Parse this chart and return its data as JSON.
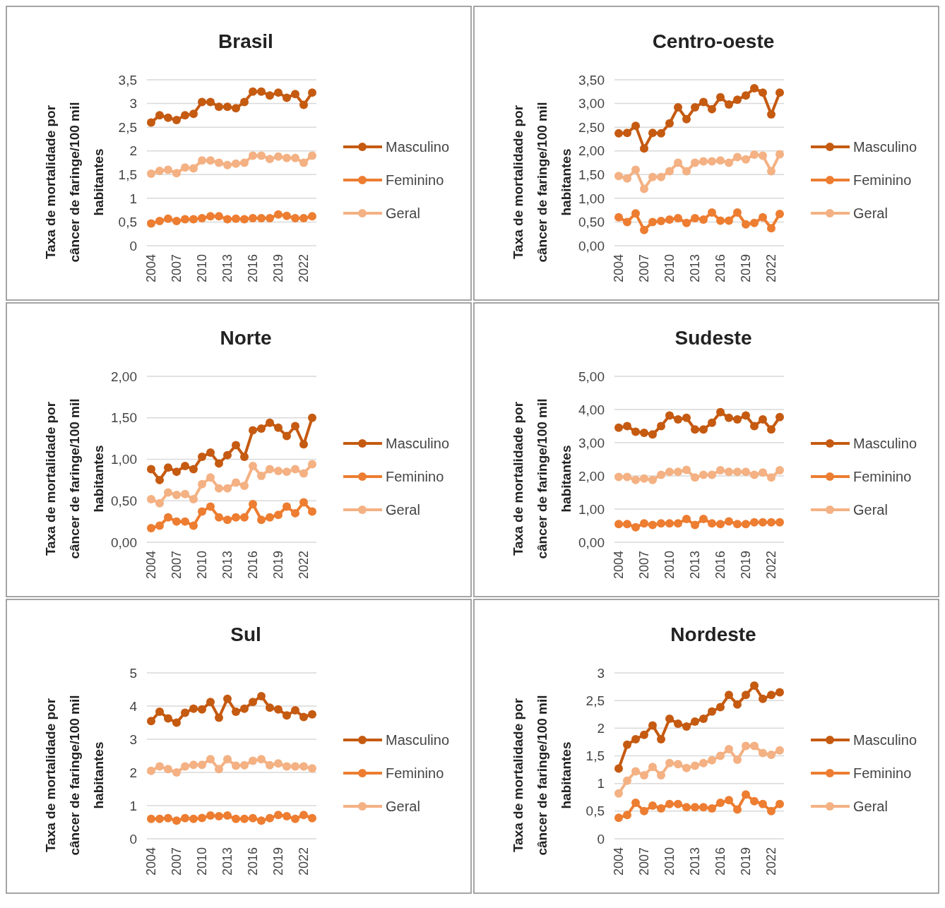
{
  "chart_data": [
    {
      "type": "line",
      "title": "Brasil",
      "ylabel": "Taxa de mortalidade por câncer de faringe/100 mil habitantes",
      "categories": [
        "2004",
        null,
        null,
        "2007",
        null,
        null,
        "2010",
        null,
        null,
        "2013",
        null,
        null,
        "2016",
        null,
        null,
        "2019",
        null,
        null,
        "2022",
        null
      ],
      "ylim": [
        0,
        3.5
      ],
      "yticks": [
        0,
        {
          "value": 0.5,
          "label": "0,5"
        },
        1,
        {
          "value": 1.5,
          "label": "1,5"
        },
        2,
        {
          "value": 2.5,
          "label": "2,5"
        },
        3,
        {
          "value": 3.5,
          "label": "3,5"
        }
      ],
      "grid": "y",
      "legend": "right",
      "marker": "circle",
      "series": [
        {
          "name": "Masculino",
          "color": "#c55a11",
          "values": [
            2.6,
            2.75,
            2.7,
            2.65,
            2.75,
            2.78,
            3.03,
            3.03,
            2.93,
            2.93,
            2.9,
            3.03,
            3.25,
            3.25,
            3.17,
            3.23,
            3.12,
            3.2,
            2.97,
            3.23
          ]
        },
        {
          "name": "Feminino",
          "color": "#ed7d31",
          "values": [
            0.47,
            0.52,
            0.57,
            0.52,
            0.56,
            0.56,
            0.58,
            0.62,
            0.62,
            0.56,
            0.57,
            0.56,
            0.58,
            0.58,
            0.58,
            0.66,
            0.63,
            0.58,
            0.58,
            0.62
          ]
        },
        {
          "name": "Geral",
          "color": "#f4b183",
          "values": [
            1.52,
            1.58,
            1.6,
            1.53,
            1.65,
            1.63,
            1.8,
            1.8,
            1.75,
            1.7,
            1.73,
            1.75,
            1.9,
            1.9,
            1.83,
            1.88,
            1.85,
            1.85,
            1.75,
            1.9
          ]
        }
      ]
    },
    {
      "type": "line",
      "title": "Centro-oeste",
      "ylabel": "Taxa de mortalidade por câncer de faringe/100 mil habitantes",
      "categories": [
        "2004",
        null,
        null,
        "2007",
        null,
        null,
        "2010",
        null,
        null,
        "2013",
        null,
        null,
        "2016",
        null,
        null,
        "2019",
        null,
        null,
        "2022",
        null
      ],
      "ylim": [
        0,
        3.5
      ],
      "yticks": [
        {
          "value": 0,
          "label": "0,00"
        },
        {
          "value": 0.5,
          "label": "0,50"
        },
        {
          "value": 1,
          "label": "1,00"
        },
        {
          "value": 1.5,
          "label": "1,50"
        },
        {
          "value": 2,
          "label": "2,00"
        },
        {
          "value": 2.5,
          "label": "2,50"
        },
        {
          "value": 3,
          "label": "3,00"
        },
        {
          "value": 3.5,
          "label": "3,50"
        }
      ],
      "grid": "y",
      "legend": "right",
      "marker": "circle",
      "series": [
        {
          "name": "Masculino",
          "color": "#c55a11",
          "values": [
            2.37,
            2.38,
            2.53,
            2.05,
            2.38,
            2.37,
            2.58,
            2.92,
            2.67,
            2.92,
            3.03,
            2.88,
            3.13,
            2.98,
            3.08,
            3.17,
            3.32,
            3.23,
            2.77,
            3.23
          ]
        },
        {
          "name": "Feminino",
          "color": "#ed7d31",
          "values": [
            0.6,
            0.5,
            0.68,
            0.33,
            0.5,
            0.52,
            0.55,
            0.58,
            0.48,
            0.58,
            0.55,
            0.7,
            0.53,
            0.53,
            0.7,
            0.45,
            0.48,
            0.6,
            0.37,
            0.67
          ]
        },
        {
          "name": "Geral",
          "color": "#f4b183",
          "values": [
            1.47,
            1.42,
            1.6,
            1.2,
            1.45,
            1.45,
            1.57,
            1.75,
            1.57,
            1.75,
            1.78,
            1.78,
            1.8,
            1.75,
            1.87,
            1.82,
            1.92,
            1.9,
            1.57,
            1.93
          ]
        }
      ]
    },
    {
      "type": "line",
      "title": "Norte",
      "ylabel": "Taxa de mortalidade por câncer de faringe/100 mil habitantes",
      "categories": [
        "2004",
        null,
        null,
        "2007",
        null,
        null,
        "2010",
        null,
        null,
        "2013",
        null,
        null,
        "2016",
        null,
        null,
        "2019",
        null,
        null,
        "2022",
        null
      ],
      "ylim": [
        0,
        2
      ],
      "yticks": [
        {
          "value": 0,
          "label": "0,00"
        },
        {
          "value": 0.5,
          "label": "0,50"
        },
        {
          "value": 1,
          "label": "1,00"
        },
        {
          "value": 1.5,
          "label": "1,50"
        },
        {
          "value": 2,
          "label": "2,00"
        }
      ],
      "grid": "y",
      "legend": "right",
      "marker": "circle",
      "series": [
        {
          "name": "Masculino",
          "color": "#c55a11",
          "values": [
            0.88,
            0.75,
            0.9,
            0.85,
            0.92,
            0.88,
            1.03,
            1.08,
            0.95,
            1.05,
            1.17,
            1.03,
            1.35,
            1.37,
            1.44,
            1.38,
            1.28,
            1.4,
            1.18,
            1.5
          ]
        },
        {
          "name": "Feminino",
          "color": "#ed7d31",
          "values": [
            0.17,
            0.2,
            0.3,
            0.25,
            0.25,
            0.2,
            0.37,
            0.43,
            0.3,
            0.27,
            0.3,
            0.3,
            0.46,
            0.27,
            0.3,
            0.33,
            0.43,
            0.35,
            0.48,
            0.37
          ]
        },
        {
          "name": "Geral",
          "color": "#f4b183",
          "values": [
            0.52,
            0.47,
            0.6,
            0.57,
            0.58,
            0.52,
            0.7,
            0.78,
            0.65,
            0.65,
            0.72,
            0.68,
            0.92,
            0.8,
            0.88,
            0.86,
            0.85,
            0.88,
            0.83,
            0.94
          ]
        }
      ]
    },
    {
      "type": "line",
      "title": "Sudeste",
      "ylabel": "Taxa de mortalidade por câncer de faringe/100 mil habitantes",
      "categories": [
        "2004",
        null,
        null,
        "2007",
        null,
        null,
        "2010",
        null,
        null,
        "2013",
        null,
        null,
        "2016",
        null,
        null,
        "2019",
        null,
        null,
        "2022",
        null
      ],
      "ylim": [
        0,
        5
      ],
      "yticks": [
        {
          "value": 0,
          "label": "0,00"
        },
        {
          "value": 1,
          "label": "1,00"
        },
        {
          "value": 2,
          "label": "2,00"
        },
        {
          "value": 3,
          "label": "3,00"
        },
        {
          "value": 4,
          "label": "4,00"
        },
        {
          "value": 5,
          "label": "5,00"
        }
      ],
      "grid": "y",
      "legend": "right",
      "marker": "circle",
      "series": [
        {
          "name": "Masculino",
          "color": "#c55a11",
          "values": [
            3.45,
            3.5,
            3.33,
            3.3,
            3.25,
            3.5,
            3.82,
            3.7,
            3.75,
            3.4,
            3.4,
            3.6,
            3.92,
            3.75,
            3.7,
            3.82,
            3.5,
            3.7,
            3.4,
            3.77
          ]
        },
        {
          "name": "Feminino",
          "color": "#ed7d31",
          "values": [
            0.55,
            0.55,
            0.45,
            0.57,
            0.52,
            0.57,
            0.57,
            0.57,
            0.7,
            0.52,
            0.7,
            0.57,
            0.55,
            0.63,
            0.55,
            0.55,
            0.6,
            0.6,
            0.6,
            0.6
          ]
        },
        {
          "name": "Geral",
          "color": "#f4b183",
          "values": [
            1.97,
            1.97,
            1.88,
            1.92,
            1.88,
            2.03,
            2.12,
            2.12,
            2.18,
            1.95,
            2.03,
            2.03,
            2.17,
            2.12,
            2.12,
            2.12,
            2.03,
            2.1,
            1.95,
            2.17
          ]
        }
      ]
    },
    {
      "type": "line",
      "title": "Sul",
      "ylabel": "Taxa de mortalidade por câncer de faringe/100 mil habitantes",
      "categories": [
        "2004",
        null,
        null,
        "2007",
        null,
        null,
        "2010",
        null,
        null,
        "2013",
        null,
        null,
        "2016",
        null,
        null,
        "2019",
        null,
        null,
        "2022",
        null
      ],
      "ylim": [
        0,
        5
      ],
      "yticks": [
        0,
        1,
        2,
        3,
        4,
        5
      ],
      "grid": "y",
      "legend": "right",
      "marker": "circle",
      "series": [
        {
          "name": "Masculino",
          "color": "#c55a11",
          "values": [
            3.55,
            3.83,
            3.63,
            3.5,
            3.8,
            3.92,
            3.9,
            4.12,
            3.65,
            4.22,
            3.83,
            3.92,
            4.12,
            4.3,
            3.95,
            3.9,
            3.72,
            3.87,
            3.67,
            3.75
          ]
        },
        {
          "name": "Feminino",
          "color": "#ed7d31",
          "values": [
            0.6,
            0.6,
            0.62,
            0.55,
            0.62,
            0.6,
            0.63,
            0.7,
            0.68,
            0.7,
            0.6,
            0.6,
            0.62,
            0.55,
            0.62,
            0.72,
            0.68,
            0.6,
            0.72,
            0.62
          ]
        },
        {
          "name": "Geral",
          "color": "#f4b183",
          "values": [
            2.05,
            2.18,
            2.1,
            2.0,
            2.18,
            2.23,
            2.23,
            2.4,
            2.1,
            2.4,
            2.2,
            2.22,
            2.35,
            2.4,
            2.22,
            2.27,
            2.18,
            2.18,
            2.18,
            2.12
          ]
        }
      ]
    },
    {
      "type": "line",
      "title": "Nordeste",
      "ylabel": "Taxa de mortalidade por câncer de faringe/100 mil habitantes",
      "categories": [
        "2004",
        null,
        null,
        "2007",
        null,
        null,
        "2010",
        null,
        null,
        "2013",
        null,
        null,
        "2016",
        null,
        null,
        "2019",
        null,
        null,
        "2022",
        null
      ],
      "ylim": [
        0,
        3
      ],
      "yticks": [
        0,
        {
          "value": 0.5,
          "label": "0,5"
        },
        1,
        {
          "value": 1.5,
          "label": "1,5"
        },
        2,
        {
          "value": 2.5,
          "label": "2,5"
        },
        3
      ],
      "grid": "y",
      "legend": "right",
      "marker": "circle",
      "series": [
        {
          "name": "Masculino",
          "color": "#c55a11",
          "values": [
            1.27,
            1.7,
            1.8,
            1.88,
            2.05,
            1.8,
            2.17,
            2.08,
            2.03,
            2.12,
            2.17,
            2.3,
            2.38,
            2.6,
            2.43,
            2.6,
            2.77,
            2.53,
            2.6,
            2.65
          ]
        },
        {
          "name": "Feminino",
          "color": "#ed7d31",
          "values": [
            0.38,
            0.43,
            0.65,
            0.5,
            0.6,
            0.55,
            0.63,
            0.63,
            0.57,
            0.57,
            0.57,
            0.55,
            0.65,
            0.7,
            0.53,
            0.8,
            0.68,
            0.63,
            0.5,
            0.63
          ]
        },
        {
          "name": "Geral",
          "color": "#f4b183",
          "values": [
            0.82,
            1.05,
            1.22,
            1.15,
            1.3,
            1.15,
            1.37,
            1.35,
            1.28,
            1.32,
            1.37,
            1.42,
            1.5,
            1.62,
            1.43,
            1.68,
            1.68,
            1.55,
            1.52,
            1.6
          ]
        }
      ]
    }
  ]
}
